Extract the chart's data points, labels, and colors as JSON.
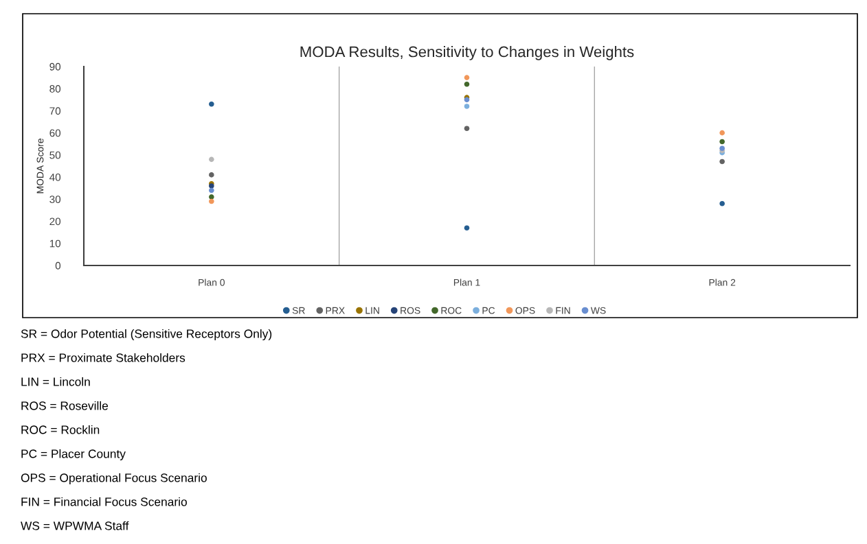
{
  "chart_data": {
    "type": "scatter",
    "title": "MODA Results, Sensitivity to Changes in Weights",
    "ylabel": "MODA Score",
    "categories": [
      "Plan 0",
      "Plan 1",
      "Plan 2"
    ],
    "ylim": [
      0,
      90
    ],
    "yticks": [
      0,
      10,
      20,
      30,
      40,
      50,
      60,
      70,
      80,
      90
    ],
    "grid": "x",
    "legend": "bottom",
    "marker": "circle",
    "series": [
      {
        "name": "SR",
        "color": "#255e91",
        "values": [
          73,
          17,
          28
        ]
      },
      {
        "name": "PRX",
        "color": "#636363",
        "values": [
          41,
          62,
          47
        ]
      },
      {
        "name": "LIN",
        "color": "#997300",
        "values": [
          37,
          76,
          null
        ]
      },
      {
        "name": "ROS",
        "color": "#264478",
        "values": [
          36,
          null,
          null
        ]
      },
      {
        "name": "ROC",
        "color": "#43682b",
        "values": [
          31,
          82,
          56
        ]
      },
      {
        "name": "PC",
        "color": "#7cafdd",
        "values": [
          null,
          72,
          51
        ]
      },
      {
        "name": "OPS",
        "color": "#f1975a",
        "values": [
          29,
          85,
          60
        ]
      },
      {
        "name": "FIN",
        "color": "#b7b7b7",
        "values": [
          48,
          null,
          52
        ]
      },
      {
        "name": "WS",
        "color": "#698ed0",
        "values": [
          34,
          75,
          53
        ]
      }
    ],
    "annotations": [
      "SR = Odor Potential (Sensitive Receptors Only)",
      "PRX = Proximate Stakeholders",
      "LIN = Lincoln",
      "ROS = Roseville",
      "ROC = Rocklin",
      "PC = Placer County",
      "OPS = Operational Focus Scenario",
      "FIN = Financial Focus Scenario",
      "WS = WPWMA Staff"
    ]
  }
}
